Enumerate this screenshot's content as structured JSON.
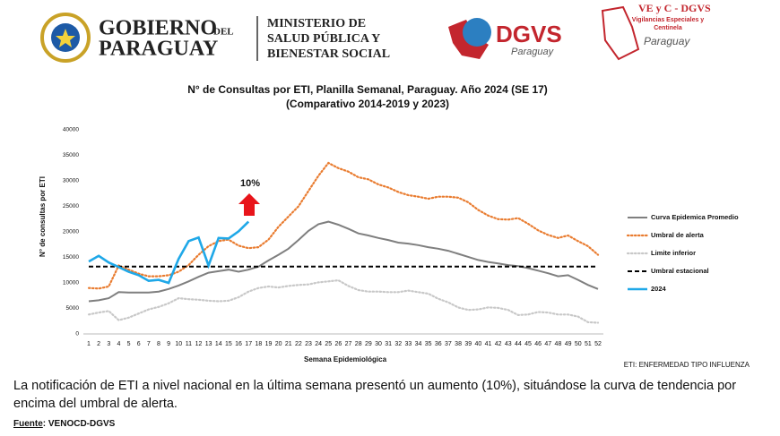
{
  "header": {
    "gov_line1": "GOBIERNO",
    "gov_del": "DEL",
    "gov_line2": "PARAGUAY",
    "ministry": [
      "MINISTERIO DE",
      "SALUD PÚBLICA Y",
      "BIENESTAR SOCIAL"
    ],
    "dgvs": "DGVS",
    "dgvs_sub": "Paraguay",
    "vec_title": "VE y C - DGVS",
    "vec_sub": [
      "Vigilancias Especiales y",
      "Centinela"
    ],
    "vec_place": "Paraguay"
  },
  "chart_data": {
    "type": "line",
    "title": [
      "N° de Consultas por ETI, Planilla Semanal, Paraguay. Año 2024  (SE 17)",
      "(Comparativo 2014-2019 y 2023)"
    ],
    "x_label": "Semana Epidemiológica",
    "y_label": "N° de consultas por ETI",
    "categories": [
      1,
      2,
      3,
      4,
      5,
      6,
      7,
      8,
      9,
      10,
      11,
      12,
      13,
      14,
      15,
      16,
      17,
      18,
      19,
      20,
      21,
      22,
      23,
      24,
      25,
      26,
      27,
      28,
      29,
      30,
      31,
      32,
      33,
      34,
      35,
      36,
      37,
      38,
      39,
      40,
      41,
      42,
      43,
      44,
      45,
      46,
      47,
      48,
      49,
      50,
      51,
      52
    ],
    "ylim": [
      0,
      40000
    ],
    "yticks": [
      0,
      5000,
      10000,
      15000,
      20000,
      25000,
      30000,
      35000,
      40000
    ],
    "annotation": "10%",
    "legend": "right",
    "series": [
      {
        "name": "Curva Epidemica Promedio",
        "color": "#7f7f7f",
        "style": "solid",
        "values": [
          6400,
          6600,
          7000,
          8200,
          8100,
          8100,
          8100,
          8300,
          8800,
          9500,
          10300,
          11200,
          12000,
          12300,
          12600,
          12200,
          12600,
          13200,
          14400,
          15500,
          16700,
          18400,
          20200,
          21500,
          22000,
          21400,
          20600,
          19700,
          19300,
          18800,
          18400,
          17900,
          17700,
          17400,
          17000,
          16700,
          16300,
          15700,
          15100,
          14500,
          14100,
          13800,
          13500,
          13300,
          12900,
          12400,
          11900,
          11300,
          11500,
          10600,
          9600,
          8800
        ]
      },
      {
        "name": "Umbral de alerta",
        "color": "#e97c30",
        "style": "dotted",
        "values": [
          9000,
          8900,
          9300,
          13400,
          12600,
          11800,
          11300,
          11300,
          11500,
          12200,
          13500,
          15500,
          17200,
          18200,
          18500,
          17300,
          16800,
          17000,
          18500,
          21000,
          23000,
          25000,
          28000,
          31000,
          33500,
          32500,
          31800,
          30700,
          30300,
          29300,
          28700,
          27800,
          27200,
          26900,
          26500,
          26900,
          26900,
          26700,
          25800,
          24300,
          23200,
          22500,
          22400,
          22700,
          21600,
          20300,
          19400,
          18800,
          19300,
          18200,
          17200,
          15500
        ]
      },
      {
        "name": "Limite inferior",
        "color": "#c8c8c8",
        "style": "dotted",
        "values": [
          3800,
          4200,
          4500,
          2700,
          3200,
          4000,
          4800,
          5300,
          6000,
          7000,
          6800,
          6700,
          6500,
          6400,
          6500,
          7200,
          8300,
          9000,
          9300,
          9100,
          9400,
          9600,
          9700,
          10100,
          10300,
          10500,
          9400,
          8600,
          8300,
          8300,
          8200,
          8200,
          8500,
          8200,
          7900,
          6900,
          6200,
          5200,
          4700,
          4800,
          5200,
          5100,
          4700,
          3700,
          3800,
          4300,
          4200,
          3800,
          3800,
          3400,
          2300,
          2200
        ]
      },
      {
        "name": "Umbral estacional",
        "color": "#000000",
        "style": "dashed",
        "values": [
          13200,
          13200,
          13200,
          13200,
          13200,
          13200,
          13200,
          13200,
          13200,
          13200,
          13200,
          13200,
          13200,
          13200,
          13200,
          13200,
          13200,
          13200,
          13200,
          13200,
          13200,
          13200,
          13200,
          13200,
          13200,
          13200,
          13200,
          13200,
          13200,
          13200,
          13200,
          13200,
          13200,
          13200,
          13200,
          13200,
          13200,
          13200,
          13200,
          13200,
          13200,
          13200,
          13200,
          13200,
          13200,
          13200,
          13200,
          13200,
          13200,
          13200,
          13200,
          13200
        ]
      },
      {
        "name": "2024",
        "color": "#1fa8e8",
        "style": "solid",
        "values": [
          14200,
          15300,
          14000,
          13100,
          12200,
          11500,
          10400,
          10600,
          10000,
          14700,
          18200,
          18900,
          13400,
          18800,
          18700,
          20100,
          22000,
          null,
          null,
          null,
          null,
          null,
          null,
          null,
          null,
          null,
          null,
          null,
          null,
          null,
          null,
          null,
          null,
          null,
          null,
          null,
          null,
          null,
          null,
          null,
          null,
          null,
          null,
          null,
          null,
          null,
          null,
          null,
          null,
          null,
          null,
          null
        ]
      }
    ],
    "note": "ETI: ENFERMEDAD TIPO INFLUENZA"
  },
  "body": "La notificación de ETI a nivel nacional en la última semana presentó un aumento (10%), situándose la curva de tendencia por encima del umbral de alerta.",
  "source_label": "Fuente",
  "source": ": VENOCD-DGVS"
}
